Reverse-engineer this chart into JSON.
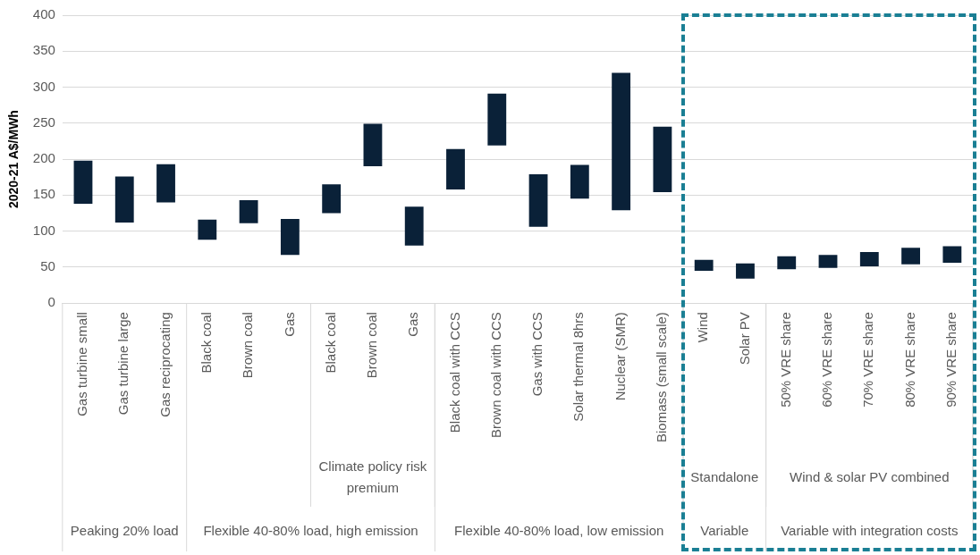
{
  "chart_data": {
    "type": "bar",
    "ylabel": "2020-21 A$/MWh",
    "categories": [
      "Gas turbine small",
      "Gas turbine large",
      "Gas reciprocating",
      "Black coal",
      "Brown coal",
      "Gas",
      "Black coal",
      "Brown coal",
      "Gas",
      "Black coal with CCS",
      "Brown coal with CCS",
      "Gas with CCS",
      "Solar thermal 8hrs",
      "Nuclear (SMR)",
      "Biomass (small scale)",
      "Wind",
      "Solar PV",
      "50% VRE share",
      "60% VRE share",
      "70% VRE share",
      "80% VRE share",
      "90% VRE share"
    ],
    "base": [
      138,
      112,
      140,
      88,
      111,
      67,
      125,
      190,
      80,
      158,
      219,
      106,
      145,
      129,
      154,
      45,
      34,
      47,
      49,
      51,
      54,
      56
    ],
    "values": [
      60,
      64,
      53,
      28,
      32,
      50,
      40,
      59,
      54,
      56,
      72,
      73,
      47,
      191,
      91,
      15,
      21,
      18,
      18,
      20,
      23,
      23
    ],
    "color": "#0a2138",
    "ylim": [
      0,
      400
    ],
    "yticks": [
      0,
      50,
      100,
      150,
      200,
      250,
      300,
      350,
      400
    ],
    "grid": "y",
    "annotations": [
      "Peaking 20% load",
      "Flexible 40-80% load, high emission",
      "Climate policy risk premium",
      "Flexible 40-80% load, low emission",
      "Standalone",
      "Variable",
      "Wind & solar PV combined",
      "Variable with integration costs"
    ]
  }
}
